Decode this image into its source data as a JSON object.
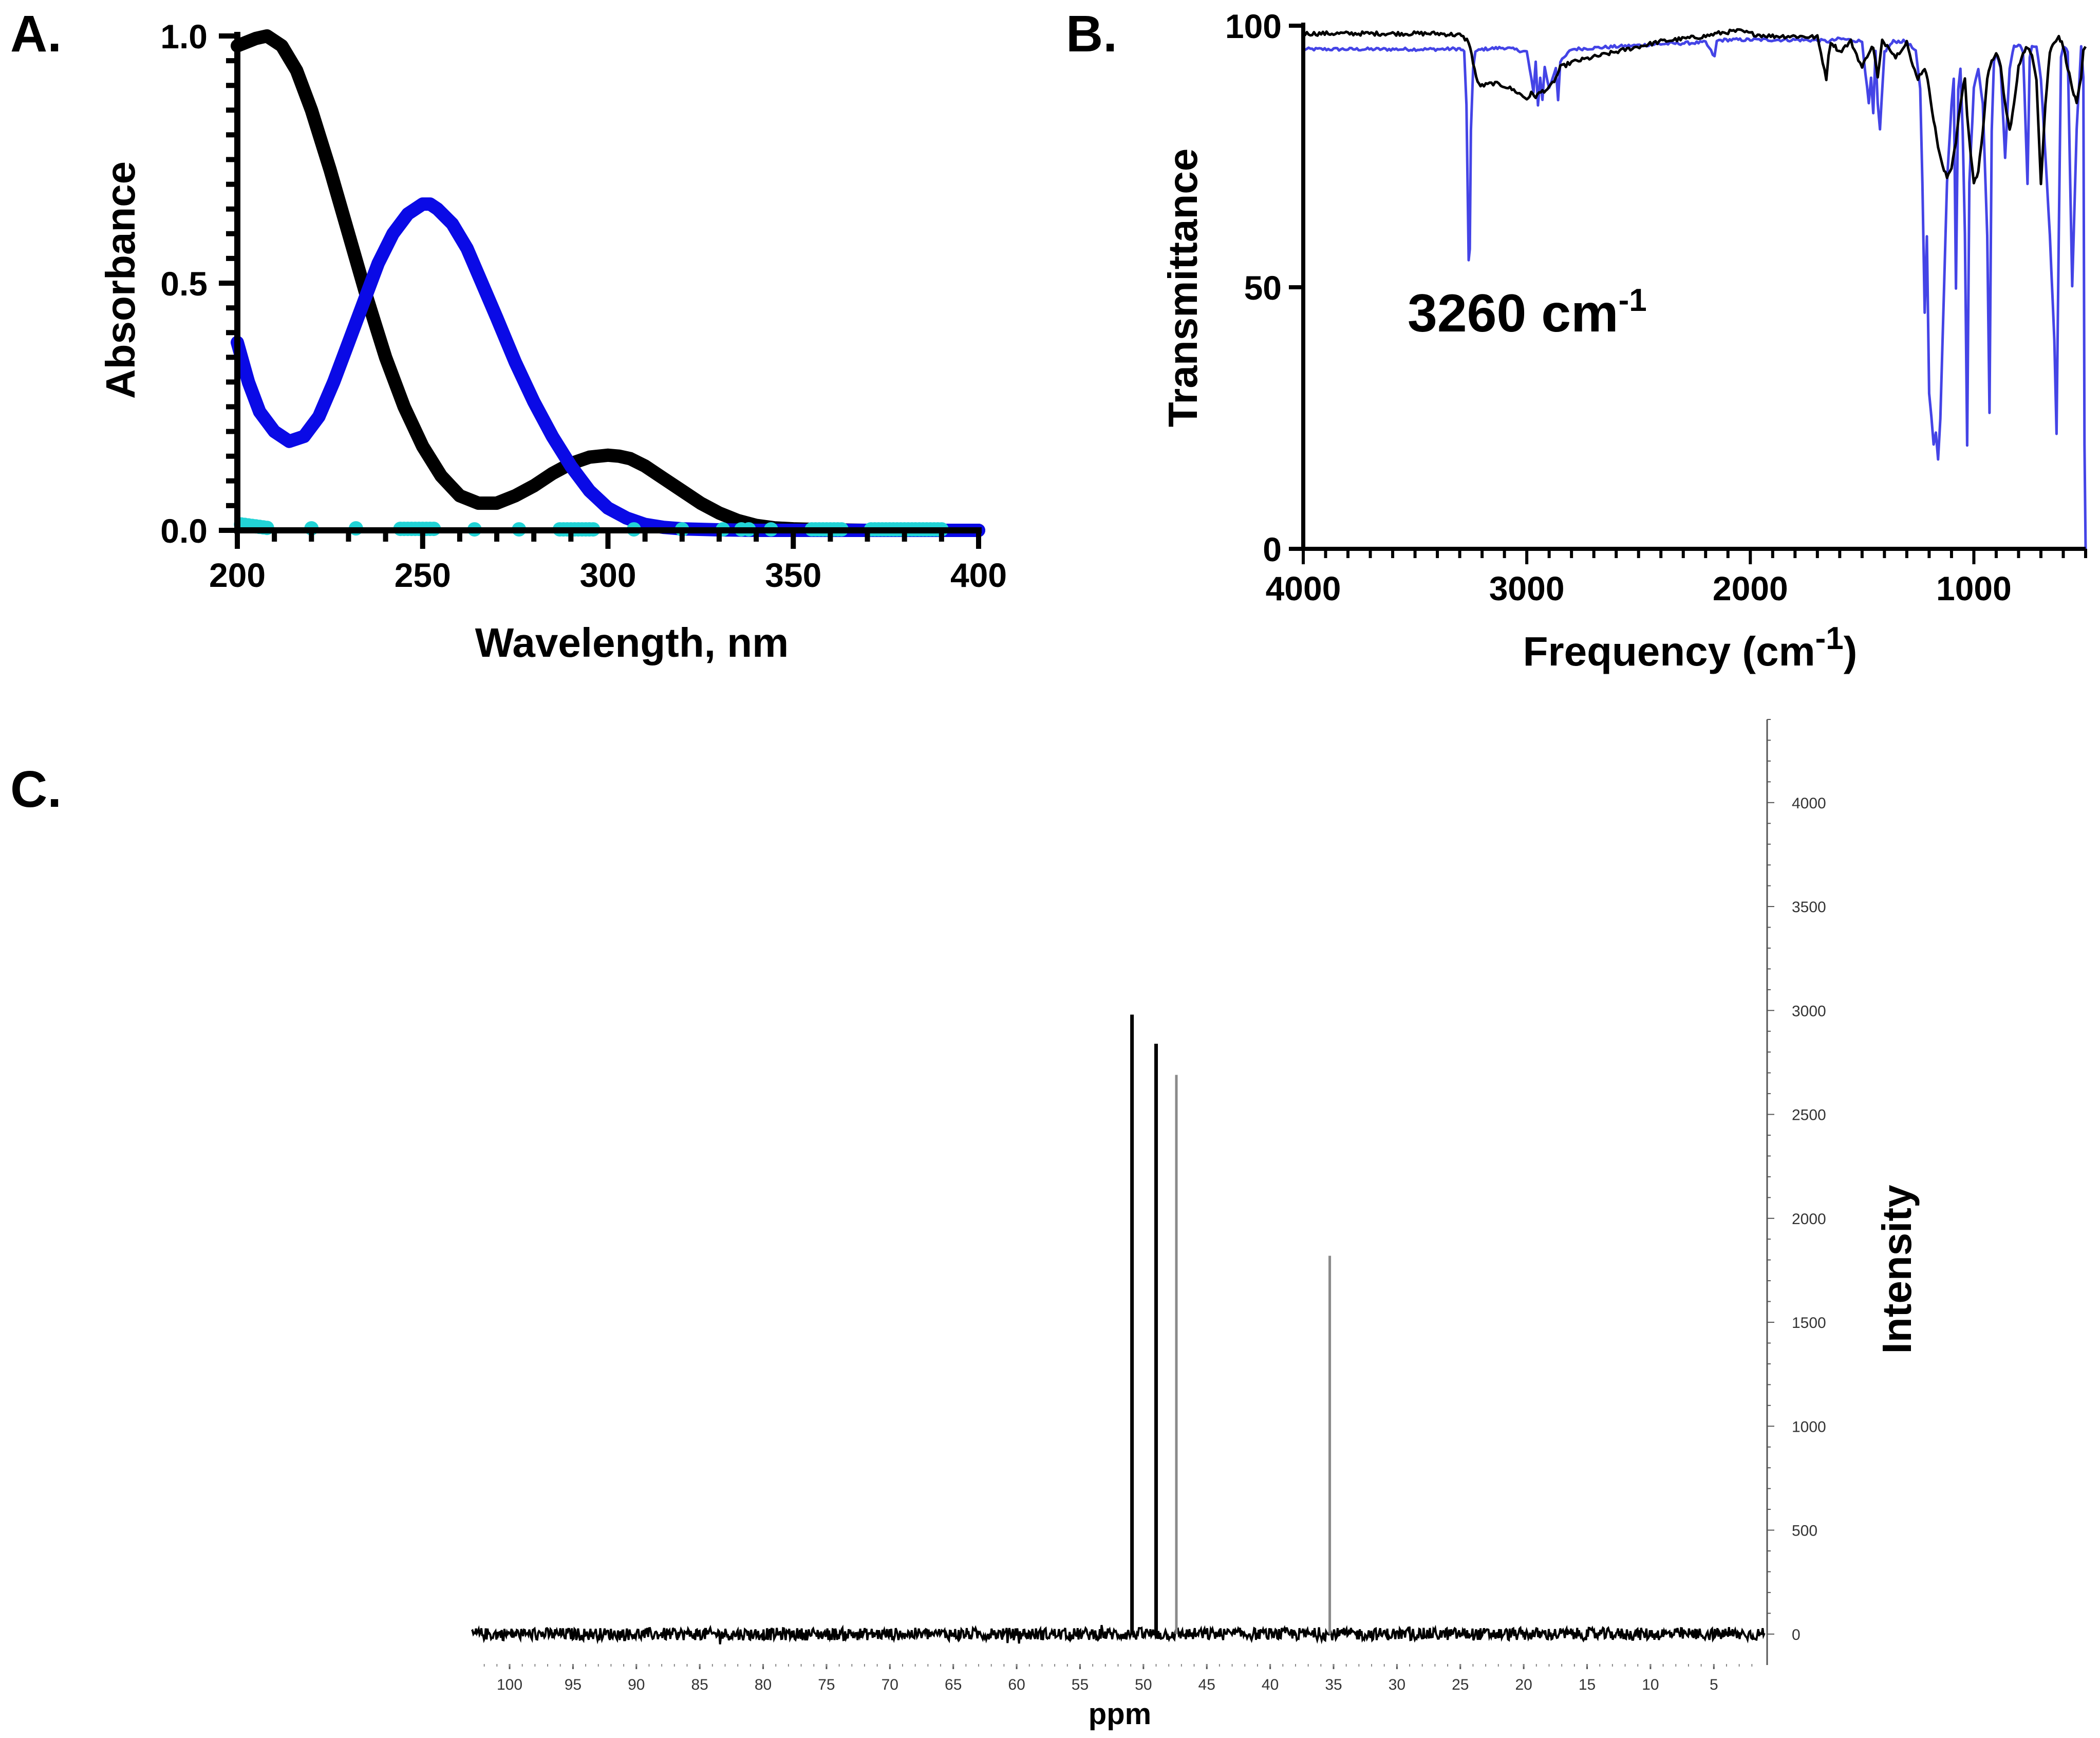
{
  "colors": {
    "black": "#000000",
    "blue": "#0a0ae6",
    "ir_blue": "#4444e6",
    "cyan": "#22d3d6",
    "grey": "#8a8a8a"
  },
  "chart_data": [
    {
      "id": "A",
      "panel_label": "A.",
      "type": "line",
      "title": "",
      "xlabel": "Wavelength, nm",
      "ylabel": "Absorbance",
      "xlim": [
        200,
        400
      ],
      "ylim": [
        0,
        1.0
      ],
      "xticks": [
        "200",
        "250",
        "300",
        "350",
        "400"
      ],
      "yticks": [
        "0.0",
        "0.5",
        "1.0"
      ],
      "legend": "none",
      "grid": false,
      "series": [
        {
          "name": "black-trace",
          "color": "#000000",
          "x": [
            200,
            205,
            208,
            212,
            216,
            220,
            225,
            230,
            235,
            240,
            245,
            250,
            255,
            260,
            265,
            270,
            275,
            280,
            285,
            290,
            295,
            300,
            303,
            306,
            310,
            315,
            320,
            325,
            330,
            335,
            340,
            345,
            350,
            360,
            370,
            380,
            390,
            400
          ],
          "y": [
            0.98,
            0.995,
            1.0,
            0.98,
            0.93,
            0.85,
            0.73,
            0.6,
            0.47,
            0.35,
            0.25,
            0.17,
            0.11,
            0.07,
            0.055,
            0.055,
            0.07,
            0.09,
            0.115,
            0.135,
            0.148,
            0.152,
            0.15,
            0.145,
            0.13,
            0.105,
            0.08,
            0.055,
            0.035,
            0.02,
            0.01,
            0.005,
            0.003,
            0.001,
            0.0,
            0.0,
            0.0,
            0.0
          ]
        },
        {
          "name": "blue-trace",
          "color": "#0a0ae6",
          "x": [
            200,
            203,
            206,
            210,
            214,
            218,
            222,
            226,
            230,
            234,
            238,
            242,
            246,
            250,
            252,
            254,
            258,
            262,
            266,
            270,
            275,
            280,
            285,
            290,
            295,
            300,
            305,
            310,
            315,
            320,
            330,
            340,
            350,
            360,
            380,
            400
          ],
          "y": [
            0.38,
            0.3,
            0.24,
            0.2,
            0.18,
            0.19,
            0.23,
            0.3,
            0.38,
            0.46,
            0.54,
            0.6,
            0.64,
            0.66,
            0.66,
            0.65,
            0.62,
            0.57,
            0.5,
            0.43,
            0.34,
            0.26,
            0.19,
            0.13,
            0.08,
            0.045,
            0.025,
            0.012,
            0.006,
            0.003,
            0.001,
            0.0,
            0.0,
            0.0,
            0.0,
            0.0
          ]
        },
        {
          "name": "cyan-points",
          "color": "#22d3d6",
          "style": "markers",
          "x": [
            201,
            202,
            203,
            204,
            205,
            206,
            207,
            208,
            220,
            232,
            244,
            245,
            246,
            247,
            248,
            249,
            250,
            251,
            252,
            253,
            264,
            276,
            287,
            288,
            289,
            290,
            291,
            292,
            293,
            294,
            295,
            296,
            307,
            320,
            331,
            336,
            338,
            344,
            355,
            356,
            357,
            358,
            359,
            360,
            361,
            362,
            363,
            371,
            372,
            373,
            374,
            375,
            376,
            377,
            378,
            379,
            380,
            381,
            382,
            383,
            384,
            385,
            386,
            387,
            388,
            389,
            390
          ],
          "y": [
            0.012,
            0.011,
            0.01,
            0.009,
            0.008,
            0.007,
            0.006,
            0.005,
            0.004,
            0.004,
            0.003,
            0.003,
            0.003,
            0.003,
            0.003,
            0.003,
            0.003,
            0.003,
            0.003,
            0.003,
            0.002,
            0.002,
            0.002,
            0.002,
            0.002,
            0.002,
            0.002,
            0.002,
            0.002,
            0.002,
            0.002,
            0.002,
            0.002,
            0.002,
            0.002,
            0.002,
            0.002,
            0.002,
            0.002,
            0.002,
            0.002,
            0.002,
            0.002,
            0.002,
            0.002,
            0.002,
            0.002,
            0.002,
            0.002,
            0.002,
            0.002,
            0.002,
            0.002,
            0.002,
            0.002,
            0.002,
            0.002,
            0.002,
            0.002,
            0.002,
            0.002,
            0.002,
            0.002,
            0.002,
            0.002,
            0.002,
            0.002
          ]
        }
      ]
    },
    {
      "id": "B",
      "panel_label": "B.",
      "type": "line",
      "title": "",
      "xlabel": "Frequency (cm",
      "xlabel_sup": "-1",
      "xlabel_end": ")",
      "ylabel": "Transmittance",
      "xlim": [
        4000,
        500
      ],
      "ylim": [
        0,
        100
      ],
      "xticks": [
        "4000",
        "3000",
        "2000",
        "1000"
      ],
      "xtick_values": [
        4000,
        3000,
        2000,
        1000
      ],
      "yticks": [
        "0",
        "50",
        "100"
      ],
      "annotation": {
        "text": "3260 cm",
        "sup": "-1",
        "x": 3260,
        "y": 53
      },
      "legend": "none",
      "grid": false,
      "series": [
        {
          "name": "black-trace",
          "color": "#000000",
          "x": [
            4000,
            3400,
            3300,
            3260,
            3240,
            3220,
            3200,
            3150,
            3100,
            3050,
            3000,
            2980,
            2960,
            2930,
            2900,
            2870,
            2850,
            2800,
            2600,
            2400,
            2200,
            2150,
            2100,
            2050,
            2000,
            1950,
            1900,
            1800,
            1700,
            1660,
            1650,
            1640,
            1620,
            1600,
            1550,
            1500,
            1470,
            1450,
            1430,
            1410,
            1380,
            1350,
            1300,
            1280,
            1250,
            1220,
            1200,
            1180,
            1160,
            1140,
            1120,
            1100,
            1080,
            1060,
            1040,
            1030,
            1020,
            1000,
            980,
            960,
            940,
            920,
            900,
            880,
            860,
            840,
            820,
            800,
            780,
            760,
            740,
            720,
            700,
            680,
            660,
            640,
            620,
            600,
            580,
            560,
            540,
            520,
            510,
            500
          ],
          "y": [
            98.5,
            98.5,
            98.2,
            97,
            93,
            89,
            88.5,
            89,
            88.5,
            87.5,
            86,
            87,
            86.5,
            87.5,
            88,
            90,
            92,
            93,
            95,
            97,
            98,
            98.5,
            98.8,
            99,
            98.5,
            98.2,
            98,
            98,
            97.8,
            90,
            94,
            97,
            96,
            95,
            97,
            92,
            95,
            96,
            90,
            97,
            96,
            94,
            97,
            93,
            90,
            92,
            88,
            82,
            77,
            73,
            71,
            73,
            78,
            85,
            90,
            83,
            78,
            70,
            72,
            80,
            90,
            93,
            95,
            92,
            85,
            80,
            85,
            92,
            95,
            96,
            94,
            90,
            70,
            85,
            95,
            97,
            98,
            96,
            92,
            88,
            85,
            90,
            95,
            96
          ],
          "x_dense": true
        },
        {
          "name": "blue-trace",
          "color": "#4444e6",
          "x": [
            4000,
            3400,
            3300,
            3280,
            3270,
            3260,
            3255,
            3250,
            3240,
            3230,
            3200,
            3100,
            3000,
            2980,
            2970,
            2960,
            2950,
            2940,
            2930,
            2920,
            2900,
            2870,
            2860,
            2850,
            2800,
            2600,
            2400,
            2200,
            2160,
            2150,
            2140,
            2100,
            2000,
            1800,
            1700,
            1650,
            1600,
            1500,
            1470,
            1460,
            1450,
            1440,
            1430,
            1420,
            1400,
            1380,
            1360,
            1300,
            1260,
            1240,
            1230,
            1220,
            1210,
            1200,
            1190,
            1180,
            1170,
            1160,
            1150,
            1140,
            1120,
            1100,
            1090,
            1080,
            1070,
            1060,
            1050,
            1040,
            1030,
            1020,
            1000,
            980,
            960,
            940,
            930,
            920,
            910,
            900,
            880,
            860,
            840,
            820,
            800,
            780,
            760,
            750,
            740,
            720,
            700,
            680,
            660,
            640,
            630,
            620,
            610,
            600,
            580,
            560,
            540,
            520,
            510,
            505,
            500
          ],
          "y": [
            95.5,
            95.5,
            95.6,
            95,
            85,
            55,
            57,
            80,
            92,
            95,
            95.5,
            95.8,
            95,
            90,
            87,
            93,
            85,
            90,
            86,
            92,
            88,
            92,
            86,
            93,
            95.5,
            96,
            96.5,
            96.8,
            94,
            97,
            97.2,
            97.3,
            97.3,
            97.3,
            97.2,
            97,
            97.5,
            97,
            85,
            90,
            83,
            95,
            85,
            80,
            95,
            96,
            97,
            97,
            95,
            88,
            70,
            45,
            60,
            30,
            25,
            20,
            22,
            17,
            25,
            40,
            70,
            85,
            90,
            50,
            88,
            92,
            80,
            60,
            20,
            70,
            88,
            92,
            85,
            60,
            26,
            80,
            93,
            95,
            92,
            75,
            92,
            96,
            96.5,
            95,
            70,
            94,
            96,
            96,
            90,
            75,
            60,
            40,
            22,
            60,
            94,
            96,
            95,
            50,
            80,
            96,
            90,
            20,
            0
          ]
        }
      ]
    },
    {
      "id": "C",
      "panel_label": "C.",
      "type": "line",
      "title": "",
      "xlabel": "ppm",
      "ylabel": "Intensity",
      "xlim": [
        103,
        1
      ],
      "ylim": [
        -50,
        4400
      ],
      "xticks": [
        "100",
        "95",
        "90",
        "85",
        "80",
        "75",
        "70",
        "65",
        "60",
        "55",
        "50",
        "45",
        "40",
        "35",
        "30",
        "25",
        "20",
        "15",
        "10",
        "5"
      ],
      "xtick_values": [
        100,
        95,
        90,
        85,
        80,
        75,
        70,
        65,
        60,
        55,
        50,
        45,
        40,
        35,
        30,
        25,
        20,
        15,
        10,
        5
      ],
      "yticks": [
        "0",
        "500",
        "1000",
        "1500",
        "2000",
        "2500",
        "3000",
        "3500",
        "4000"
      ],
      "ytick_values": [
        0,
        500,
        1000,
        1500,
        2000,
        2500,
        3000,
        3500,
        4000
      ],
      "legend": "none",
      "grid": false,
      "baseline_noise": 30,
      "peaks": [
        {
          "ppm": 50.9,
          "intensity": 2980,
          "color": "#000000"
        },
        {
          "ppm": 49.0,
          "intensity": 2840,
          "color": "#000000"
        },
        {
          "ppm": 47.4,
          "intensity": 2690,
          "color": "#8a8a8a"
        },
        {
          "ppm": 35.3,
          "intensity": 1820,
          "color": "#8a8a8a"
        }
      ]
    }
  ]
}
